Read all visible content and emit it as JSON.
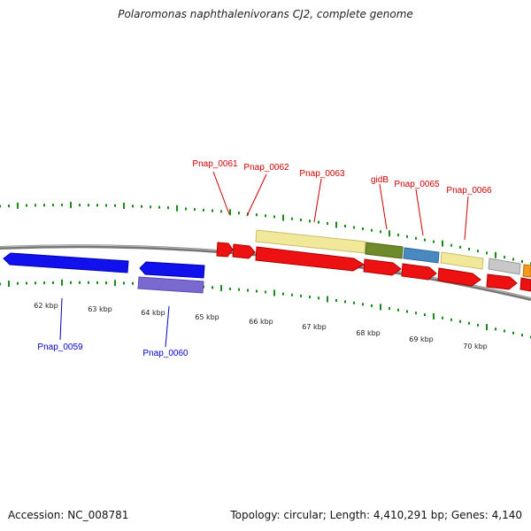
{
  "title": "Polaromonas naphthalenivorans CJ2, complete genome",
  "footer": {
    "accession": "Accession: NC_008781",
    "stats": "Topology: circular; Length: 4,410,291 bp; Genes: 4,140"
  },
  "colors": {
    "tick": "#1a8a1a",
    "backbone": "#777777",
    "forward_label": "#cc0000",
    "reverse_label": "#0000cc",
    "red_gene": "#ee1111",
    "blue_gene": "#1111ee",
    "purple_gene": "#7a6ad0",
    "pale_gene": "#f2e89a",
    "green_gene": "#6e8a2a",
    "steel_gene": "#4a88c0",
    "gray_gene": "#c8c8c8",
    "orange_gene": "#f39a1a"
  },
  "scale_labels": [
    "62 kbp",
    "63 kbp",
    "64 kbp",
    "65 kbp",
    "66 kbp",
    "67 kbp",
    "68 kbp",
    "69 kbp",
    "70 kbp"
  ],
  "forward_labels": [
    "Pnap_0061",
    "Pnap_0062",
    "Pnap_0063",
    "gidB",
    "Pnap_0065",
    "Pnap_0066"
  ],
  "reverse_labels": [
    "Pnap_0059",
    "Pnap_0060"
  ]
}
